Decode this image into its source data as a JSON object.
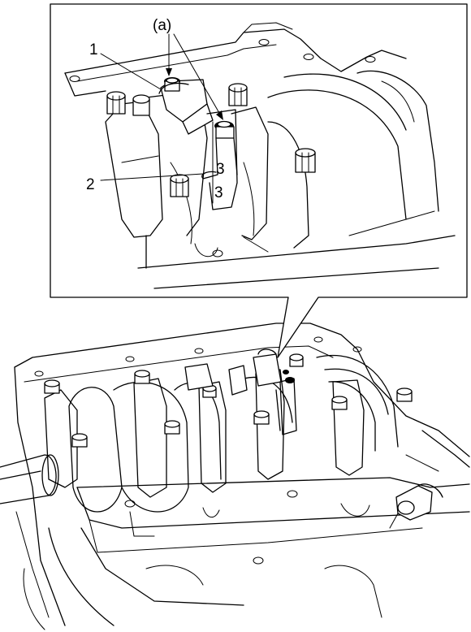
{
  "labels": {
    "callout_a": "(a)",
    "part_1": "1",
    "part_2": "2",
    "mark_3_upper": "3",
    "mark_3_lower": "3"
  }
}
